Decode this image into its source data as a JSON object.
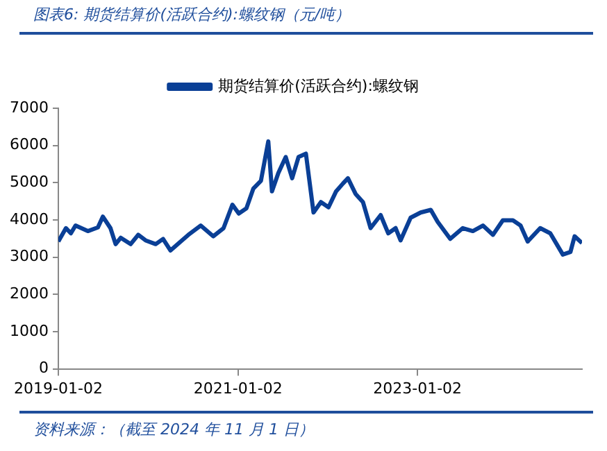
{
  "chart_data": {
    "type": "line",
    "title": "图表6:  期货结算价(活跃合约):螺纹钢（元/吨）",
    "annotations": [
      "资料来源：（截至 2024 年 11 月 1 日）"
    ],
    "x": [
      "2019-01-02",
      "2019-02-02",
      "2019-02-22",
      "2019-03-13",
      "2019-05-02",
      "2019-06-12",
      "2019-07-02",
      "2019-08-02",
      "2019-08-23",
      "2019-09-13",
      "2019-10-23",
      "2019-11-23",
      "2019-12-23",
      "2020-02-02",
      "2020-03-03",
      "2020-04-02",
      "2020-05-14",
      "2020-06-14",
      "2020-08-03",
      "2020-09-23",
      "2020-11-04",
      "2020-12-10",
      "2021-01-05",
      "2021-02-05",
      "2021-03-05",
      "2021-04-05",
      "2021-05-05",
      "2021-05-20",
      "2021-06-15",
      "2021-07-15",
      "2021-08-10",
      "2021-09-05",
      "2021-10-05",
      "2021-11-05",
      "2021-12-05",
      "2022-01-05",
      "2022-02-05",
      "2022-03-05",
      "2022-03-25",
      "2022-04-25",
      "2022-05-25",
      "2022-06-25",
      "2022-08-05",
      "2022-09-05",
      "2022-10-05",
      "2022-10-25",
      "2022-12-05",
      "2023-01-15",
      "2023-02-25",
      "2023-03-25",
      "2023-05-15",
      "2023-07-05",
      "2023-08-15",
      "2023-09-25",
      "2023-11-05",
      "2023-12-15",
      "2024-01-25",
      "2024-02-25",
      "2024-03-25",
      "2024-05-15",
      "2024-06-25",
      "2024-08-15",
      "2024-09-15",
      "2024-10-02",
      "2024-11-01"
    ],
    "series": [
      {
        "name": "期货结算价(活跃合约):螺纹钢",
        "color": "#0a3f96",
        "values": [
          3420,
          3780,
          3640,
          3850,
          3700,
          3800,
          4090,
          3780,
          3350,
          3520,
          3350,
          3600,
          3450,
          3350,
          3490,
          3180,
          3420,
          3600,
          3850,
          3560,
          3780,
          4410,
          4170,
          4310,
          4840,
          5050,
          6110,
          4770,
          5260,
          5690,
          5120,
          5690,
          5780,
          4200,
          4480,
          4340,
          4770,
          4980,
          5120,
          4700,
          4480,
          3780,
          4130,
          3640,
          3780,
          3450,
          4060,
          4200,
          4270,
          3950,
          3490,
          3780,
          3700,
          3850,
          3600,
          3990,
          3990,
          3850,
          3420,
          3780,
          3640,
          3070,
          3140,
          3560,
          3380
        ]
      }
    ],
    "xlim": [
      "2019-01-02",
      "2024-11-01"
    ],
    "xticks": [
      "2019-01-02",
      "2021-01-02",
      "2023-01-02"
    ],
    "ylim": [
      0,
      7000
    ],
    "yticks": [
      0,
      1000,
      2000,
      3000,
      4000,
      5000,
      6000,
      7000
    ],
    "grid": false,
    "legend": "top",
    "marker": "none",
    "line_style": "solid"
  }
}
